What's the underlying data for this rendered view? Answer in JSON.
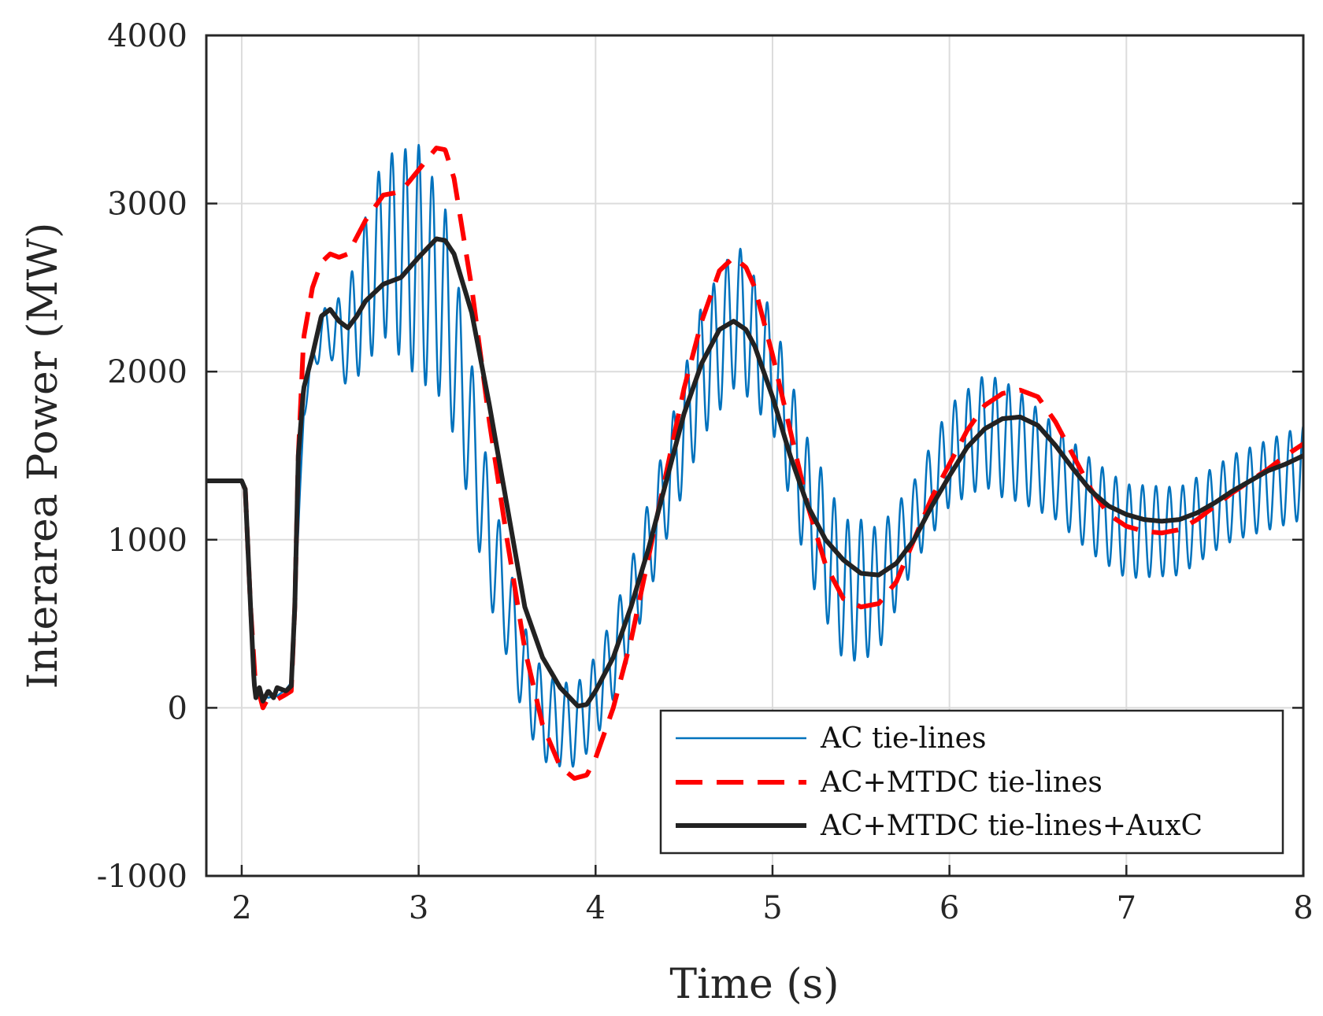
{
  "chart_data": {
    "type": "line",
    "title": "",
    "xlabel": "Time (s)",
    "ylabel": "Interarea Power (MW)",
    "xlim": [
      1.8,
      8
    ],
    "ylim": [
      -1000,
      4000
    ],
    "xticks": [
      2,
      3,
      4,
      5,
      6,
      7,
      8
    ],
    "xtick_labels": [
      "2",
      "3",
      "4",
      "5",
      "6",
      "7",
      "8"
    ],
    "yticks": [
      -1000,
      0,
      1000,
      2000,
      3000,
      4000
    ],
    "ytick_labels": [
      "-1000",
      "0",
      "1000",
      "2000",
      "3000",
      "4000"
    ],
    "grid": true,
    "legend_position": "bottom-right",
    "series": [
      {
        "name": "AC tie-lines",
        "color": "#0072BD",
        "style": "solid",
        "osc_freq_hz": 13.2,
        "osc_amp_envelope": {
          "t": [
            2.3,
            2.5,
            2.7,
            3.0,
            3.3,
            3.5,
            3.8,
            4.1,
            4.4,
            4.6,
            4.8,
            5.0,
            5.3,
            5.5,
            5.8,
            6.0,
            6.3,
            6.6,
            7.0,
            7.5,
            8.0
          ],
          "amp": [
            50,
            150,
            450,
            700,
            450,
            300,
            250,
            250,
            300,
            400,
            420,
            350,
            420,
            420,
            250,
            300,
            350,
            280,
            280,
            250,
            280
          ]
        },
        "points": [
          [
            1.8,
            1350
          ],
          [
            2.0,
            1350
          ],
          [
            2.02,
            1300
          ],
          [
            2.05,
            600
          ],
          [
            2.08,
            100
          ],
          [
            2.1,
            80
          ],
          [
            2.15,
            60
          ],
          [
            2.2,
            70
          ],
          [
            2.25,
            110
          ],
          [
            2.28,
            150
          ],
          [
            2.32,
            1000
          ],
          [
            2.35,
            1800
          ],
          [
            2.45,
            2250
          ],
          [
            2.6,
            2200
          ],
          [
            2.8,
            2750
          ],
          [
            3.0,
            2650
          ],
          [
            3.15,
            2400
          ],
          [
            3.3,
            1600
          ],
          [
            3.4,
            1000
          ],
          [
            3.5,
            600
          ],
          [
            3.6,
            200
          ],
          [
            3.7,
            -50
          ],
          [
            3.8,
            -100
          ],
          [
            3.9,
            -100
          ],
          [
            4.0,
            60
          ],
          [
            4.1,
            300
          ],
          [
            4.2,
            600
          ],
          [
            4.4,
            1300
          ],
          [
            4.6,
            2000
          ],
          [
            4.8,
            2350
          ],
          [
            5.0,
            2000
          ],
          [
            5.2,
            1200
          ],
          [
            5.4,
            700
          ],
          [
            5.6,
            700
          ],
          [
            5.8,
            1100
          ],
          [
            6.0,
            1500
          ],
          [
            6.2,
            1650
          ],
          [
            6.4,
            1550
          ],
          [
            6.6,
            1400
          ],
          [
            6.8,
            1200
          ],
          [
            7.0,
            1050
          ],
          [
            7.3,
            1050
          ],
          [
            7.6,
            1250
          ],
          [
            8.0,
            1400
          ]
        ]
      },
      {
        "name": "AC+MTDC tie-lines",
        "color": "#FF0000",
        "style": "dashed",
        "points": [
          [
            1.8,
            1350
          ],
          [
            2.0,
            1350
          ],
          [
            2.02,
            1300
          ],
          [
            2.05,
            600
          ],
          [
            2.08,
            100
          ],
          [
            2.1,
            80
          ],
          [
            2.12,
            0
          ],
          [
            2.15,
            60
          ],
          [
            2.2,
            50
          ],
          [
            2.25,
            80
          ],
          [
            2.28,
            100
          ],
          [
            2.3,
            600
          ],
          [
            2.32,
            1500
          ],
          [
            2.35,
            2200
          ],
          [
            2.4,
            2500
          ],
          [
            2.45,
            2650
          ],
          [
            2.5,
            2700
          ],
          [
            2.55,
            2680
          ],
          [
            2.6,
            2700
          ],
          [
            2.7,
            2900
          ],
          [
            2.8,
            3050
          ],
          [
            2.9,
            3070
          ],
          [
            3.0,
            3200
          ],
          [
            3.1,
            3330
          ],
          [
            3.15,
            3320
          ],
          [
            3.2,
            3150
          ],
          [
            3.3,
            2500
          ],
          [
            3.4,
            1700
          ],
          [
            3.5,
            1000
          ],
          [
            3.6,
            350
          ],
          [
            3.7,
            -100
          ],
          [
            3.8,
            -350
          ],
          [
            3.88,
            -420
          ],
          [
            3.95,
            -400
          ],
          [
            4.0,
            -300
          ],
          [
            4.1,
            0
          ],
          [
            4.2,
            400
          ],
          [
            4.3,
            900
          ],
          [
            4.4,
            1400
          ],
          [
            4.5,
            1900
          ],
          [
            4.6,
            2300
          ],
          [
            4.7,
            2600
          ],
          [
            4.78,
            2680
          ],
          [
            4.85,
            2620
          ],
          [
            4.9,
            2500
          ],
          [
            5.0,
            2100
          ],
          [
            5.1,
            1650
          ],
          [
            5.2,
            1200
          ],
          [
            5.3,
            850
          ],
          [
            5.4,
            650
          ],
          [
            5.5,
            600
          ],
          [
            5.6,
            620
          ],
          [
            5.7,
            750
          ],
          [
            5.8,
            1000
          ],
          [
            5.9,
            1250
          ],
          [
            6.0,
            1450
          ],
          [
            6.1,
            1650
          ],
          [
            6.2,
            1800
          ],
          [
            6.3,
            1870
          ],
          [
            6.4,
            1890
          ],
          [
            6.5,
            1850
          ],
          [
            6.6,
            1700
          ],
          [
            6.7,
            1500
          ],
          [
            6.8,
            1300
          ],
          [
            6.9,
            1150
          ],
          [
            7.0,
            1080
          ],
          [
            7.1,
            1050
          ],
          [
            7.2,
            1040
          ],
          [
            7.3,
            1060
          ],
          [
            7.4,
            1120
          ],
          [
            7.5,
            1200
          ],
          [
            7.6,
            1280
          ],
          [
            7.7,
            1350
          ],
          [
            7.8,
            1420
          ],
          [
            7.9,
            1500
          ],
          [
            8.0,
            1570
          ]
        ]
      },
      {
        "name": "AC+MTDC tie-lines+AuxC",
        "color": "#222222",
        "style": "solid",
        "points": [
          [
            1.8,
            1350
          ],
          [
            2.0,
            1350
          ],
          [
            2.02,
            1300
          ],
          [
            2.05,
            600
          ],
          [
            2.07,
            150
          ],
          [
            2.08,
            60
          ],
          [
            2.1,
            120
          ],
          [
            2.12,
            40
          ],
          [
            2.15,
            100
          ],
          [
            2.18,
            60
          ],
          [
            2.2,
            120
          ],
          [
            2.25,
            100
          ],
          [
            2.28,
            130
          ],
          [
            2.3,
            600
          ],
          [
            2.32,
            1500
          ],
          [
            2.35,
            1900
          ],
          [
            2.4,
            2100
          ],
          [
            2.45,
            2330
          ],
          [
            2.5,
            2370
          ],
          [
            2.55,
            2300
          ],
          [
            2.6,
            2260
          ],
          [
            2.65,
            2330
          ],
          [
            2.7,
            2420
          ],
          [
            2.8,
            2520
          ],
          [
            2.9,
            2560
          ],
          [
            3.0,
            2680
          ],
          [
            3.1,
            2790
          ],
          [
            3.15,
            2780
          ],
          [
            3.2,
            2700
          ],
          [
            3.3,
            2350
          ],
          [
            3.4,
            1800
          ],
          [
            3.5,
            1200
          ],
          [
            3.6,
            600
          ],
          [
            3.7,
            300
          ],
          [
            3.8,
            120
          ],
          [
            3.9,
            10
          ],
          [
            3.95,
            20
          ],
          [
            4.0,
            100
          ],
          [
            4.1,
            300
          ],
          [
            4.2,
            600
          ],
          [
            4.3,
            950
          ],
          [
            4.4,
            1350
          ],
          [
            4.5,
            1750
          ],
          [
            4.6,
            2050
          ],
          [
            4.7,
            2250
          ],
          [
            4.78,
            2300
          ],
          [
            4.85,
            2250
          ],
          [
            4.9,
            2150
          ],
          [
            5.0,
            1850
          ],
          [
            5.1,
            1500
          ],
          [
            5.2,
            1200
          ],
          [
            5.3,
            1000
          ],
          [
            5.4,
            880
          ],
          [
            5.5,
            800
          ],
          [
            5.6,
            790
          ],
          [
            5.7,
            860
          ],
          [
            5.8,
            1000
          ],
          [
            5.9,
            1200
          ],
          [
            6.0,
            1380
          ],
          [
            6.1,
            1550
          ],
          [
            6.2,
            1660
          ],
          [
            6.3,
            1720
          ],
          [
            6.4,
            1730
          ],
          [
            6.5,
            1680
          ],
          [
            6.6,
            1560
          ],
          [
            6.7,
            1420
          ],
          [
            6.8,
            1290
          ],
          [
            6.9,
            1200
          ],
          [
            7.0,
            1150
          ],
          [
            7.1,
            1120
          ],
          [
            7.2,
            1110
          ],
          [
            7.3,
            1120
          ],
          [
            7.4,
            1160
          ],
          [
            7.5,
            1220
          ],
          [
            7.6,
            1290
          ],
          [
            7.7,
            1350
          ],
          [
            7.8,
            1410
          ],
          [
            7.9,
            1450
          ],
          [
            8.0,
            1500
          ]
        ]
      }
    ]
  }
}
